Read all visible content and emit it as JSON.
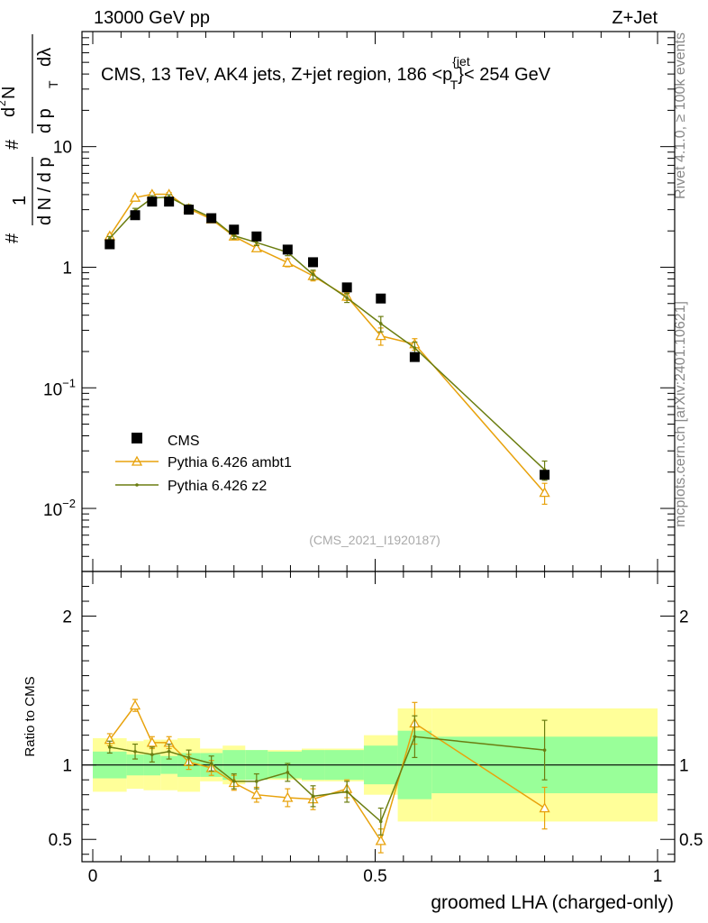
{
  "header": {
    "left": "13000 GeV pp",
    "right": "Z+Jet"
  },
  "side_labels": {
    "rivet": "Rivet 4.1.0, ≥ 100k events",
    "mcplots": "mcplots.cern.ch [arXiv:2401.10621]"
  },
  "chart_data": {
    "type": "line",
    "title": "CMS, 13 TeV, AK4 jets, Z+jet region, 186 <p",
    "title_sup": "{jet",
    "title_sub": "T",
    "title_tail": "}< 254 GeV",
    "analysis_id": "(CMS_2021_I1920187)",
    "xlabel": "groomed LHA (charged-only)",
    "ylabel_parts": [
      "#",
      "1",
      "d N / d p",
      "T",
      "#",
      "d",
      "2",
      "N",
      "d p",
      "T",
      "dλ"
    ],
    "ratio_ylabel": "Ratio to CMS",
    "xlim": [
      0,
      1
    ],
    "ylim": [
      0.003,
      90
    ],
    "yscale": "log",
    "ratio_ylim": [
      0.35,
      2.3
    ],
    "x_ticks": [
      {
        "v": 0,
        "label": "0"
      },
      {
        "v": 0.5,
        "label": "0.5"
      },
      {
        "v": 1,
        "label": "1"
      }
    ],
    "y_ticks": [
      {
        "v": 10,
        "base": "10",
        "exp": ""
      },
      {
        "v": 1,
        "base": "1",
        "exp": ""
      },
      {
        "v": 0.1,
        "base": "10",
        "exp": "−1"
      },
      {
        "v": 0.01,
        "base": "10",
        "exp": "−2"
      }
    ],
    "ratio_y_ticks": [
      {
        "v": 2,
        "label": "2"
      },
      {
        "v": 1,
        "label": "1"
      },
      {
        "v": 0.5,
        "label": "0.5"
      }
    ],
    "bins": [
      [
        0,
        0.06
      ],
      [
        0.06,
        0.09
      ],
      [
        0.09,
        0.12
      ],
      [
        0.12,
        0.15
      ],
      [
        0.15,
        0.19
      ],
      [
        0.19,
        0.23
      ],
      [
        0.23,
        0.27
      ],
      [
        0.27,
        0.31
      ],
      [
        0.31,
        0.37
      ],
      [
        0.37,
        0.41
      ],
      [
        0.41,
        0.48
      ],
      [
        0.48,
        0.54
      ],
      [
        0.54,
        0.6
      ],
      [
        0.6,
        1.0
      ]
    ],
    "cms": {
      "name": "CMS",
      "x": [
        0.03,
        0.075,
        0.105,
        0.135,
        0.17,
        0.21,
        0.25,
        0.29,
        0.345,
        0.39,
        0.45,
        0.51,
        0.57,
        0.8
      ],
      "y": [
        1.55,
        2.7,
        3.5,
        3.5,
        3.0,
        2.55,
        2.05,
        1.8,
        1.4,
        1.1,
        0.68,
        0.55,
        0.18,
        0.019
      ],
      "stat_band": [
        0.09,
        0.07,
        0.07,
        0.06,
        0.08,
        0.08,
        0.1,
        0.1,
        0.09,
        0.1,
        0.1,
        0.13,
        0.23,
        0.19
      ],
      "total_band": [
        0.18,
        0.16,
        0.17,
        0.17,
        0.18,
        0.11,
        0.13,
        0.1,
        0.1,
        0.11,
        0.11,
        0.2,
        0.38,
        0.38
      ]
    },
    "series": [
      {
        "name": "Pythia 6.426 ambt1",
        "color": "#e8a20c",
        "marker": "open-triangle",
        "x": [
          0.03,
          0.075,
          0.105,
          0.135,
          0.17,
          0.21,
          0.25,
          0.29,
          0.345,
          0.39,
          0.45,
          0.51,
          0.57,
          0.8
        ],
        "ratio": [
          1.17,
          1.4,
          1.15,
          1.15,
          1.02,
          0.98,
          0.88,
          0.8,
          0.78,
          0.77,
          0.84,
          0.49,
          1.28,
          0.71
        ],
        "ratio_err": [
          0.04,
          0.04,
          0.04,
          0.04,
          0.05,
          0.05,
          0.05,
          0.05,
          0.06,
          0.07,
          0.06,
          0.08,
          0.14,
          0.14
        ]
      },
      {
        "name": "Pythia 6.426 z2",
        "color": "#6b7d10",
        "marker": "dot",
        "x": [
          0.03,
          0.075,
          0.105,
          0.135,
          0.17,
          0.21,
          0.25,
          0.29,
          0.345,
          0.39,
          0.45,
          0.51,
          0.57,
          0.8
        ],
        "ratio": [
          1.12,
          1.09,
          1.07,
          1.09,
          1.05,
          1.01,
          0.89,
          0.89,
          0.95,
          0.79,
          0.82,
          0.62,
          1.19,
          1.1
        ],
        "ratio_err": [
          0.04,
          0.05,
          0.05,
          0.05,
          0.05,
          0.05,
          0.05,
          0.05,
          0.06,
          0.07,
          0.07,
          0.09,
          0.14,
          0.2
        ]
      }
    ]
  }
}
